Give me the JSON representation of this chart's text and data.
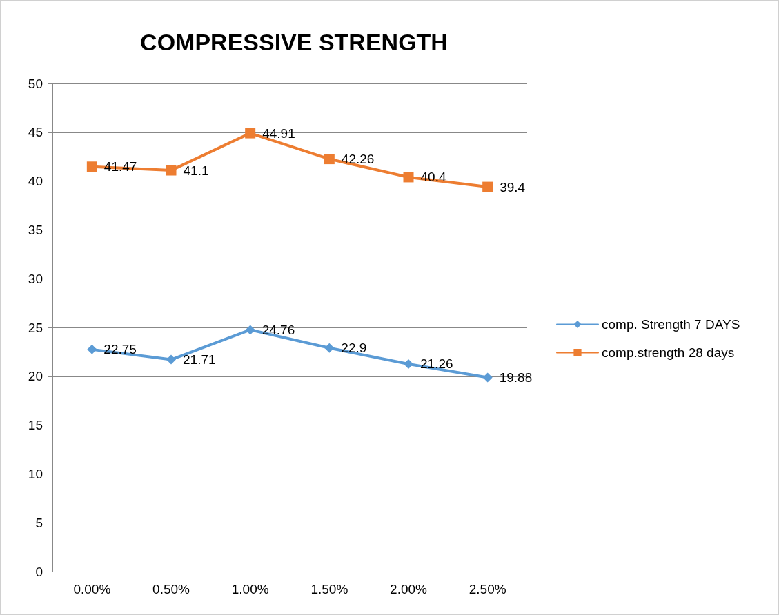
{
  "chart_data": {
    "type": "line",
    "title": "COMPRESSIVE STRENGTH",
    "categories": [
      "0.00%",
      "0.50%",
      "1.00%",
      "1.50%",
      "2.00%",
      "2.50%"
    ],
    "series": [
      {
        "name": "comp. Strength 7 DAYS",
        "color": "#5b9bd5",
        "marker": "diamond",
        "values": [
          22.75,
          21.71,
          24.76,
          22.9,
          21.26,
          19.88
        ]
      },
      {
        "name": "comp.strength 28 days",
        "color": "#ed7d31",
        "marker": "square",
        "values": [
          41.47,
          41.1,
          44.91,
          42.26,
          40.4,
          39.4
        ]
      }
    ],
    "ylim": [
      0,
      50
    ],
    "yticks": [
      0,
      5,
      10,
      15,
      20,
      25,
      30,
      35,
      40,
      45,
      50
    ],
    "grid": "y",
    "legend": "right",
    "data_labels": true
  }
}
